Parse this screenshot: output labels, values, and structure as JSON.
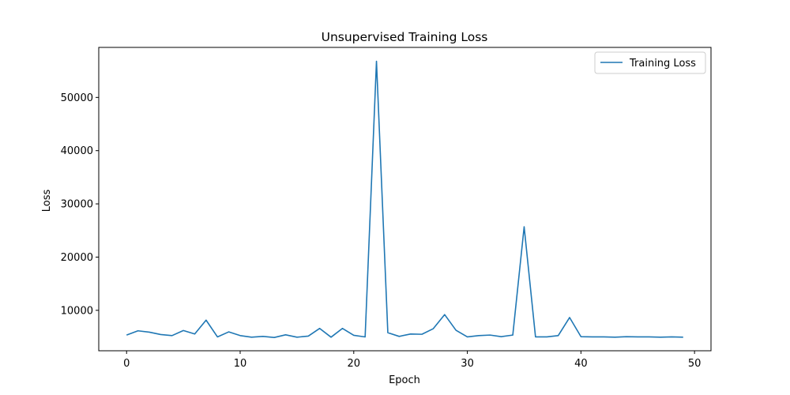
{
  "chart_data": {
    "type": "line",
    "title": "Unsupervised Training Loss",
    "xlabel": "Epoch",
    "ylabel": "Loss",
    "xlim": [
      -2.45,
      51.45
    ],
    "ylim": [
      2400,
      59400
    ],
    "xticks": [
      0,
      10,
      20,
      30,
      40,
      50
    ],
    "yticks": [
      10000,
      20000,
      30000,
      40000,
      50000
    ],
    "grid": false,
    "legend": {
      "placement": "top-right",
      "entries": [
        "Training Loss"
      ]
    },
    "colors": {
      "series": "#1f77b4"
    },
    "series": [
      {
        "name": "Training Loss",
        "x": [
          0,
          1,
          2,
          3,
          4,
          5,
          6,
          7,
          8,
          9,
          10,
          11,
          12,
          13,
          14,
          15,
          16,
          17,
          18,
          19,
          20,
          21,
          22,
          23,
          24,
          25,
          26,
          27,
          28,
          29,
          30,
          31,
          32,
          33,
          34,
          35,
          36,
          37,
          38,
          39,
          40,
          41,
          42,
          43,
          44,
          45,
          46,
          47,
          48,
          49
        ],
        "values": [
          5350,
          6150,
          5900,
          5450,
          5250,
          6200,
          5550,
          8150,
          5000,
          5950,
          5250,
          4950,
          5100,
          4900,
          5400,
          4950,
          5150,
          6600,
          4950,
          6600,
          5300,
          5000,
          56800,
          5800,
          5100,
          5550,
          5500,
          6550,
          9200,
          6250,
          5000,
          5250,
          5350,
          5050,
          5350,
          25700,
          5000,
          5000,
          5250,
          8650,
          5050,
          5000,
          5000,
          4950,
          5050,
          5000,
          5000,
          4950,
          5000,
          4950
        ]
      }
    ]
  }
}
